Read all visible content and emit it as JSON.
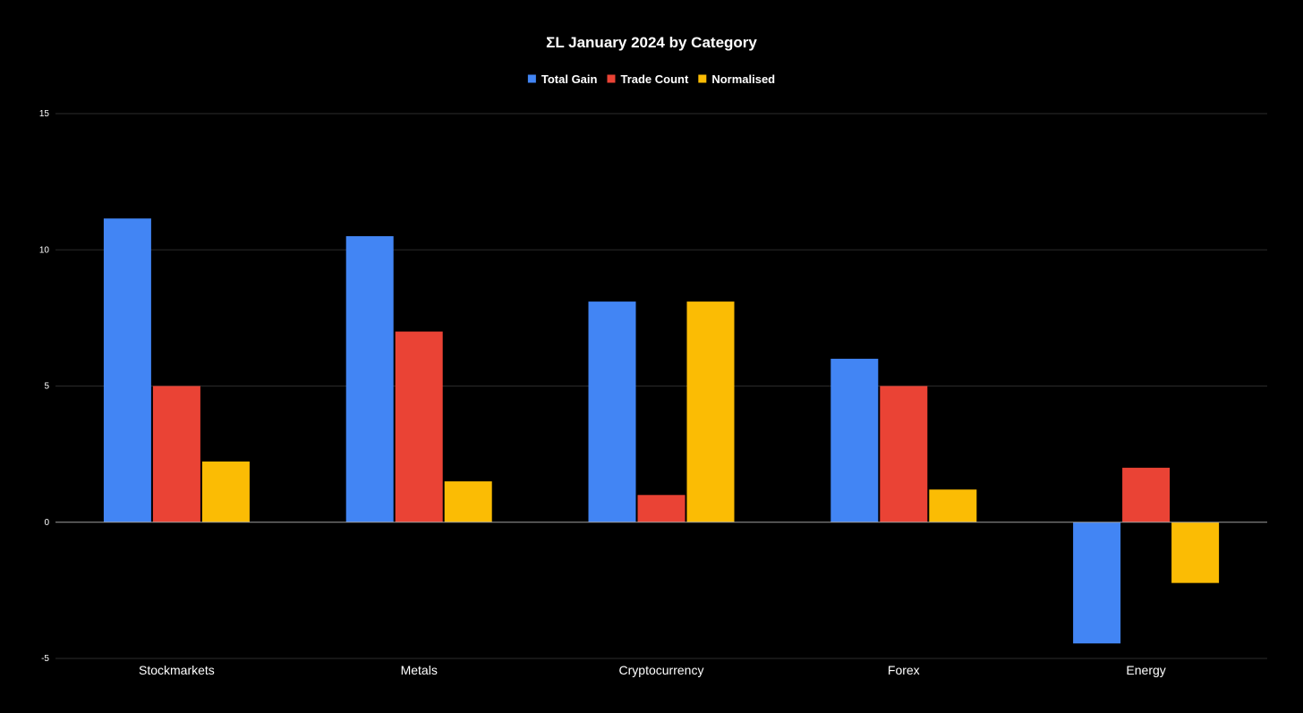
{
  "chart_data": {
    "type": "bar",
    "title": "ΣL January 2024 by Category",
    "xlabel": "",
    "ylabel": "",
    "categories": [
      "Stockmarkets",
      "Metals",
      "Cryptocurrency",
      "Forex",
      "Energy"
    ],
    "series": [
      {
        "name": "Total Gain",
        "color": "#4285f4",
        "values": [
          11.15,
          10.5,
          8.1,
          6.0,
          -4.45
        ]
      },
      {
        "name": "Trade Count",
        "color": "#ea4335",
        "values": [
          5,
          7,
          1,
          5,
          2
        ]
      },
      {
        "name": "Normalised",
        "color": "#fbbc04",
        "values": [
          2.23,
          1.5,
          8.1,
          1.2,
          -2.23
        ]
      }
    ],
    "ylim": [
      -5,
      15
    ],
    "yticks": [
      15,
      10,
      5,
      0,
      -5
    ],
    "ytick_labels": [
      "15",
      "10",
      "5",
      "0",
      "-5"
    ],
    "grid": true,
    "legend_position": "top-center",
    "background": "#000000"
  }
}
